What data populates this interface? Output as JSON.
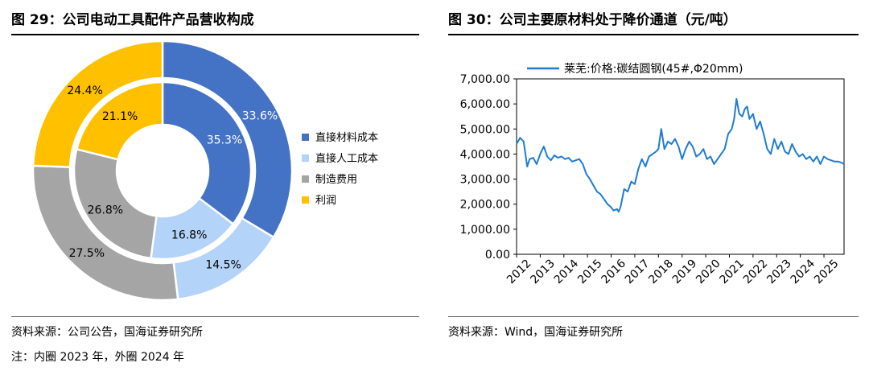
{
  "left": {
    "title": "图 29：公司电动工具配件产品营收构成",
    "source": "资料来源：公司公告，国海证券研究所",
    "note": "注：内圈 2023 年，外圈 2024 年"
  },
  "right": {
    "title": "图 30：公司主要原材料处于降价通道（元/吨）",
    "source": "资料来源：Wind，国海证券研究所"
  },
  "colors": {
    "blue": "#4472C4",
    "lightblue": "#B4D3F9",
    "gray": "#A5A5A5",
    "gold": "#FFC000",
    "line": "#1E7CD2"
  },
  "chart_data": [
    {
      "type": "pie",
      "variant": "double-donut",
      "categories": [
        "直接材料成本",
        "直接人工成本",
        "制造费用",
        "利润"
      ],
      "series": [
        {
          "values": [
            35.3,
            16.8,
            26.8,
            21.1
          ],
          "labels": [
            "35.3%",
            "16.8%",
            "26.8%",
            "21.1%"
          ]
        },
        {
          "values": [
            33.6,
            14.5,
            27.5,
            24.4
          ],
          "labels": [
            "33.6%",
            "14.5%",
            "27.5%",
            "24.4%"
          ]
        }
      ],
      "legend": "right"
    },
    {
      "type": "line",
      "series_name": "莱芜:价格:碳结圆钢(45#,Φ20mm)",
      "xlim": [
        2012.0,
        2025.85
      ],
      "ylim": [
        0,
        7000
      ],
      "yticks": [
        "0.00",
        "1,000.00",
        "2,000.00",
        "3,000.00",
        "4,000.00",
        "5,000.00",
        "6,000.00",
        "7,000.00"
      ],
      "xticks": [
        "2012",
        "2013",
        "2014",
        "2015",
        "2016",
        "2017",
        "2018",
        "2019",
        "2020",
        "2021",
        "2022",
        "2023",
        "2024",
        "2025"
      ],
      "legend": "top-left",
      "grid": false,
      "x": [
        2012.0,
        2012.15,
        2012.3,
        2012.45,
        2012.55,
        2012.7,
        2012.85,
        2013.0,
        2013.15,
        2013.3,
        2013.45,
        2013.6,
        2013.75,
        2013.9,
        2014.05,
        2014.2,
        2014.35,
        2014.5,
        2014.65,
        2014.8,
        2014.95,
        2015.1,
        2015.25,
        2015.4,
        2015.55,
        2015.7,
        2015.85,
        2015.97,
        2016.1,
        2016.25,
        2016.32,
        2016.4,
        2016.55,
        2016.7,
        2016.85,
        2017.0,
        2017.15,
        2017.3,
        2017.45,
        2017.6,
        2017.75,
        2017.9,
        2018.0,
        2018.12,
        2018.25,
        2018.4,
        2018.55,
        2018.7,
        2018.85,
        2019.0,
        2019.15,
        2019.3,
        2019.45,
        2019.6,
        2019.75,
        2019.9,
        2020.05,
        2020.2,
        2020.35,
        2020.5,
        2020.65,
        2020.8,
        2020.95,
        2021.1,
        2021.2,
        2021.3,
        2021.42,
        2021.55,
        2021.65,
        2021.75,
        2021.85,
        2022.0,
        2022.15,
        2022.3,
        2022.45,
        2022.6,
        2022.75,
        2022.9,
        2023.05,
        2023.2,
        2023.35,
        2023.5,
        2023.65,
        2023.8,
        2023.95,
        2024.1,
        2024.25,
        2024.4,
        2024.55,
        2024.7,
        2024.85,
        2025.0,
        2025.15,
        2025.3,
        2025.45,
        2025.6,
        2025.75,
        2025.85
      ],
      "y": [
        4400,
        4650,
        4500,
        3500,
        3800,
        3850,
        3600,
        4000,
        4300,
        3900,
        3750,
        3950,
        3850,
        3900,
        3800,
        3850,
        3700,
        3750,
        3800,
        3600,
        3200,
        3000,
        2750,
        2500,
        2400,
        2200,
        2000,
        1900,
        1750,
        1800,
        1700,
        1900,
        2600,
        2500,
        2900,
        2800,
        3400,
        3800,
        3500,
        3900,
        4000,
        4100,
        4200,
        5000,
        4200,
        4500,
        4400,
        4600,
        4300,
        3800,
        4200,
        4500,
        4300,
        3900,
        4000,
        4200,
        3800,
        3900,
        3600,
        3800,
        4000,
        4200,
        4800,
        5000,
        5400,
        6200,
        5600,
        5500,
        5800,
        5900,
        5400,
        5600,
        5000,
        5300,
        4800,
        4200,
        4000,
        4600,
        4200,
        4500,
        4100,
        4000,
        4400,
        4100,
        3900,
        4000,
        3800,
        3900,
        3700,
        3900,
        3600,
        3900,
        3800,
        3750,
        3700,
        3700,
        3650,
        3600
      ]
    }
  ]
}
